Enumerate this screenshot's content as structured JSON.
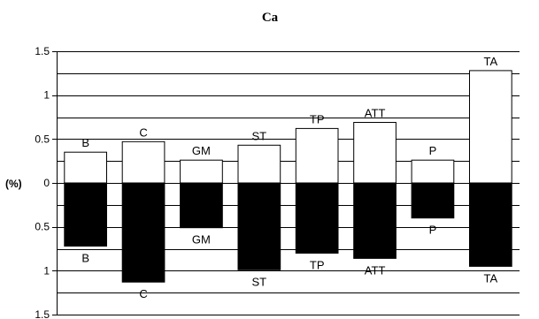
{
  "chart_data": {
    "type": "bar",
    "title": "Ca",
    "ylabel": "(%)",
    "xlabel": "",
    "ylim": [
      -1.5,
      1.5
    ],
    "y_ticks": [
      {
        "value": 1.5,
        "label": "1.5"
      },
      {
        "value": 1,
        "label": "1"
      },
      {
        "value": 0.5,
        "label": "0.5"
      },
      {
        "value": 0,
        "label": "0"
      },
      {
        "value": -0.5,
        "label": "0.5"
      },
      {
        "value": -1,
        "label": "1"
      },
      {
        "value": -1.5,
        "label": "1.5"
      }
    ],
    "gridline_step": 0.25,
    "grid": true,
    "legend": "none",
    "categories": [
      "B",
      "C",
      "GM",
      "ST",
      "TP",
      "ATT",
      "P",
      "TA"
    ],
    "series": [
      {
        "fill": "#ffffff",
        "values": [
          0.35,
          0.47,
          0.26,
          0.43,
          0.62,
          0.69,
          0.26,
          1.28
        ],
        "labels": [
          "B",
          "C",
          "GM",
          "ST",
          "TP",
          "ATT",
          "P",
          "TA"
        ]
      },
      {
        "fill": "#000000",
        "values": [
          -0.72,
          -1.13,
          -0.51,
          -0.99,
          -0.8,
          -0.86,
          -0.4,
          -0.95
        ],
        "labels": [
          "B",
          "C",
          "GM",
          "ST",
          "TP",
          "ATT",
          "P",
          "TA"
        ]
      }
    ]
  }
}
